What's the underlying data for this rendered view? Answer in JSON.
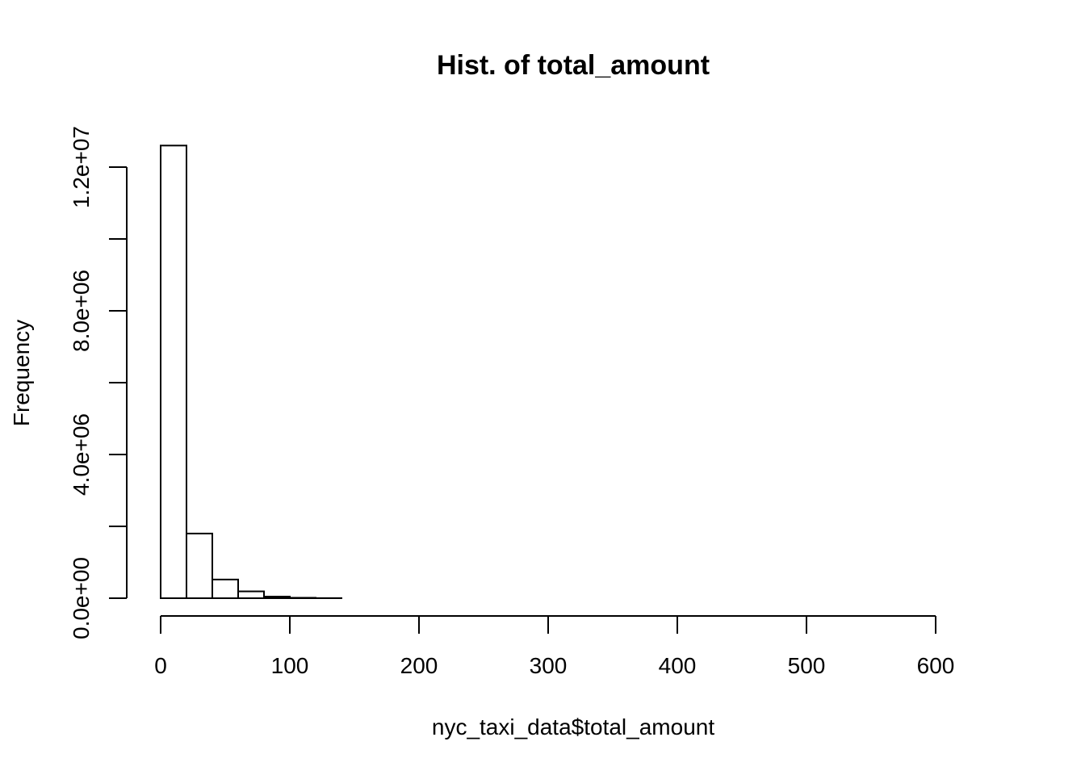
{
  "chart_data": {
    "type": "bar",
    "title": "Hist. of total_amount",
    "xlabel": "nyc_taxi_data$total_amount",
    "ylabel": "Frequency",
    "bin_width": 20,
    "bins_start": 0,
    "bins_end": 640,
    "values": [
      12600000,
      1800000,
      520000,
      190000,
      45000,
      12000,
      3000,
      0,
      0,
      0,
      0,
      0,
      0,
      0,
      0,
      0,
      0,
      0,
      0,
      0,
      0,
      0,
      0,
      0,
      0,
      0,
      0,
      0,
      0,
      0,
      0,
      0
    ],
    "xlim": [
      0,
      640
    ],
    "ylim": [
      0,
      12000000
    ],
    "x_ticks": [
      0,
      100,
      200,
      300,
      400,
      500,
      600
    ],
    "x_tick_labels": [
      "0",
      "100",
      "200",
      "300",
      "400",
      "500",
      "600"
    ],
    "y_ticks": [
      0,
      2000000,
      4000000,
      6000000,
      8000000,
      10000000,
      12000000
    ],
    "y_tick_labels": [
      "0.0e+00",
      "",
      "4.0e+06",
      "",
      "8.0e+06",
      "",
      "1.2e+07"
    ],
    "grid": false,
    "legend": "none"
  }
}
